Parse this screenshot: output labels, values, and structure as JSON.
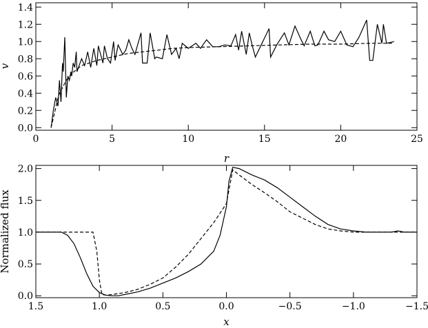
{
  "chart_data": [
    {
      "type": "line",
      "xlabel": "r",
      "ylabel": "v",
      "xlim": [
        0,
        25
      ],
      "ylim": [
        -0.03,
        1.45
      ],
      "xticks": [
        "0",
        "5",
        "10",
        "15",
        "20",
        "25"
      ],
      "yticks": [
        "0.0",
        "0.2",
        "0.4",
        "0.6",
        "0.8",
        "1.0",
        "1.2",
        "1.4"
      ],
      "grid": false,
      "series": [
        {
          "style": "solid",
          "x": [
            1.0,
            1.15,
            1.3,
            1.45,
            1.55,
            1.65,
            1.75,
            1.8,
            1.9,
            2.0,
            2.1,
            2.2,
            2.3,
            2.35,
            2.45,
            2.55,
            2.65,
            2.7,
            2.8,
            3.0,
            3.2,
            3.4,
            3.6,
            3.8,
            4.0,
            4.1,
            4.4,
            4.5,
            4.7,
            4.9,
            5.1,
            5.2,
            5.4,
            5.7,
            5.9,
            6.1,
            6.3,
            6.5,
            6.9,
            7.0,
            7.3,
            7.5,
            7.8,
            7.9,
            8.3,
            8.6,
            8.9,
            9.2,
            9.4,
            9.6,
            9.8,
            10.0,
            10.5,
            10.8,
            11.2,
            11.6,
            12.0,
            12.4,
            12.8,
            13.1,
            13.3,
            13.5,
            13.8,
            14.0,
            14.2,
            14.4,
            15.3,
            15.4,
            15.8,
            16.3,
            16.6,
            17.0,
            17.4,
            17.6,
            18.0,
            18.3,
            18.5,
            18.9,
            19.2,
            19.6,
            20.0,
            20.4,
            20.8,
            21.2,
            21.7,
            21.9,
            22.1,
            22.4,
            22.7,
            22.8,
            23.0,
            23.5
          ],
          "y": [
            0.0,
            0.2,
            0.35,
            0.25,
            0.55,
            0.3,
            0.75,
            0.65,
            1.05,
            0.35,
            0.6,
            0.55,
            0.65,
            0.6,
            0.75,
            0.7,
            0.88,
            0.65,
            0.7,
            0.8,
            0.72,
            0.88,
            0.7,
            0.92,
            0.72,
            0.95,
            0.75,
            0.95,
            0.8,
            0.75,
            1.0,
            0.78,
            0.96,
            0.85,
            0.9,
            1.02,
            0.92,
            0.85,
            1.1,
            0.75,
            0.75,
            1.1,
            0.8,
            0.82,
            0.8,
            1.08,
            0.85,
            0.92,
            0.8,
            0.98,
            0.95,
            0.92,
            0.98,
            0.92,
            1.02,
            0.94,
            0.94,
            0.96,
            0.95,
            1.08,
            0.9,
            1.12,
            0.85,
            1.1,
            0.95,
            0.82,
            1.15,
            0.82,
            0.96,
            1.1,
            0.96,
            1.18,
            1.02,
            0.95,
            1.12,
            0.95,
            0.96,
            1.12,
            1.02,
            1.0,
            1.12,
            0.96,
            0.94,
            1.05,
            1.25,
            0.78,
            0.78,
            1.2,
            0.98,
            1.2,
            0.98,
            1.0
          ]
        },
        {
          "style": "dashed",
          "x": [
            1.0,
            1.5,
            2.0,
            2.5,
            3.0,
            4.0,
            5.0,
            6.0,
            7.0,
            8.0,
            9.0,
            10.0,
            12.0,
            14.0,
            16.0,
            18.0,
            20.0,
            22.0,
            23.5
          ],
          "y": [
            0.0,
            0.38,
            0.55,
            0.65,
            0.72,
            0.78,
            0.82,
            0.86,
            0.88,
            0.9,
            0.92,
            0.93,
            0.94,
            0.95,
            0.96,
            0.97,
            0.97,
            0.98,
            0.98
          ]
        }
      ]
    },
    {
      "type": "line",
      "xlabel": "x",
      "ylabel": "Normalized flux",
      "xlim": [
        1.5,
        -1.5
      ],
      "ylim": [
        -0.03,
        2.05
      ],
      "xticks": [
        "1.5",
        "1.0",
        "0.5",
        "0.0",
        "−0.5",
        "−1.0",
        "−1.5"
      ],
      "yticks": [
        "0.0",
        "0.5",
        "1.0",
        "1.5",
        "2.0"
      ],
      "grid": false,
      "series": [
        {
          "style": "solid",
          "x": [
            1.5,
            1.3,
            1.25,
            1.2,
            1.15,
            1.1,
            1.05,
            1.0,
            0.95,
            0.9,
            0.85,
            0.8,
            0.7,
            0.6,
            0.5,
            0.4,
            0.3,
            0.2,
            0.1,
            0.05,
            0.0,
            -0.02,
            -0.05,
            -0.1,
            -0.15,
            -0.2,
            -0.3,
            -0.4,
            -0.5,
            -0.6,
            -0.7,
            -0.8,
            -0.9,
            -1.0,
            -1.1,
            -1.2,
            -1.3,
            -1.35,
            -1.4,
            -1.5
          ],
          "y": [
            1.0,
            1.0,
            0.95,
            0.82,
            0.6,
            0.35,
            0.15,
            0.05,
            0.01,
            0.0,
            0.0,
            0.02,
            0.06,
            0.12,
            0.2,
            0.28,
            0.38,
            0.5,
            0.7,
            0.95,
            1.4,
            1.8,
            2.02,
            2.0,
            1.95,
            1.9,
            1.82,
            1.7,
            1.55,
            1.4,
            1.25,
            1.12,
            1.05,
            1.02,
            1.0,
            1.0,
            1.0,
            1.02,
            1.0,
            1.0
          ]
        },
        {
          "style": "dashed",
          "x": [
            1.5,
            1.3,
            1.2,
            1.1,
            1.05,
            1.02,
            1.0,
            0.98,
            0.95,
            0.9,
            0.8,
            0.7,
            0.6,
            0.5,
            0.4,
            0.3,
            0.2,
            0.1,
            0.0,
            -0.05,
            -0.1,
            -0.2,
            -0.3,
            -0.4,
            -0.5,
            -0.6,
            -0.7,
            -0.8,
            -0.9,
            -1.0,
            -1.1,
            -1.2,
            -1.3,
            -1.5
          ],
          "y": [
            1.0,
            1.0,
            1.0,
            1.0,
            1.0,
            0.7,
            0.25,
            0.02,
            0.01,
            0.02,
            0.05,
            0.1,
            0.18,
            0.28,
            0.45,
            0.65,
            0.9,
            1.15,
            1.45,
            1.98,
            1.9,
            1.75,
            1.62,
            1.48,
            1.32,
            1.22,
            1.12,
            1.05,
            1.02,
            1.0,
            1.0,
            1.0,
            1.0,
            1.0
          ]
        }
      ]
    }
  ]
}
